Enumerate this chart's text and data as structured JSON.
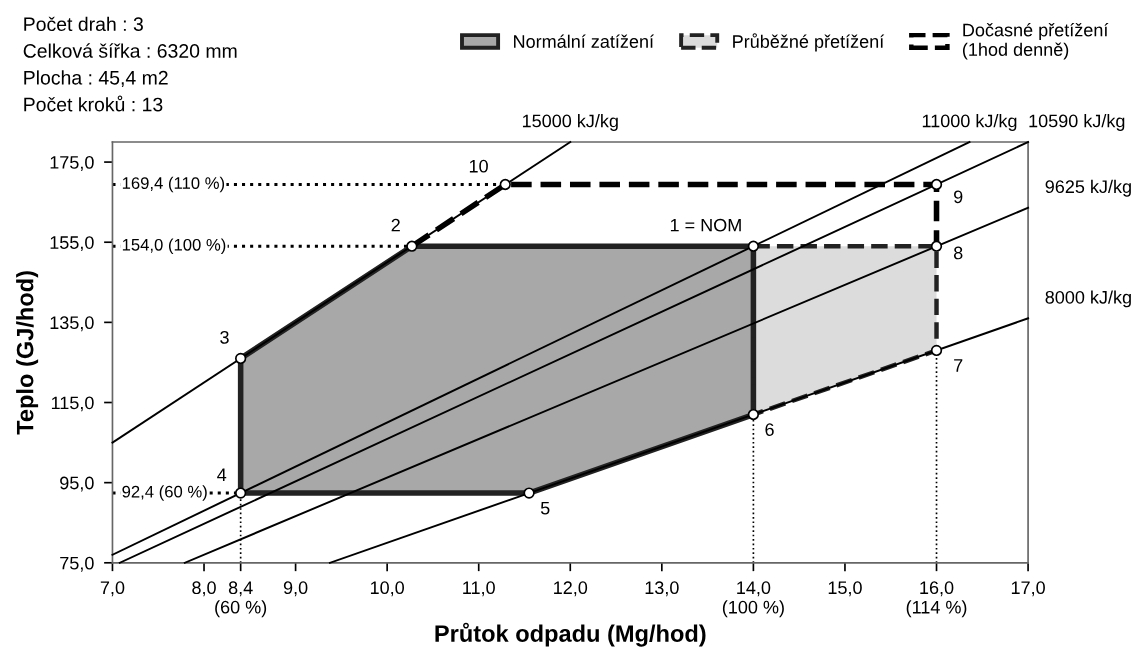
{
  "chart_data": {
    "type": "line",
    "xlabel": "Průtok odpadu (Mg/hod)",
    "ylabel": "Teplo (GJ/hod)",
    "xlim": [
      7,
      17
    ],
    "ylim": [
      75,
      180
    ],
    "xticks": [
      {
        "value": 7,
        "label": "7,0"
      },
      {
        "value": 8,
        "label": "8,0"
      },
      {
        "value": 8.4,
        "label": "8,4\n(60 %)"
      },
      {
        "value": 9,
        "label": "9,0"
      },
      {
        "value": 10,
        "label": "10,0"
      },
      {
        "value": 11,
        "label": "11,0"
      },
      {
        "value": 12,
        "label": "12,0"
      },
      {
        "value": 13,
        "label": "13,0"
      },
      {
        "value": 14,
        "label": "14,0\n(100 %)"
      },
      {
        "value": 15,
        "label": "15,0"
      },
      {
        "value": 16,
        "label": "16,0\n(114 %)"
      },
      {
        "value": 17,
        "label": "17,0"
      }
    ],
    "yticks": [
      {
        "value": 75,
        "label": "75,0"
      },
      {
        "value": 95,
        "label": "95,0"
      },
      {
        "value": 115,
        "label": "115,0"
      },
      {
        "value": 135,
        "label": "135,0"
      },
      {
        "value": 155,
        "label": "155,0"
      },
      {
        "value": 175,
        "label": "175,0"
      }
    ],
    "grid": false,
    "legend": "top right",
    "series": [
      {
        "type": "area",
        "name": "Normální zatížení",
        "color": "#a8a8a8",
        "line_style": "solid",
        "x": [
          8.4,
          10.27,
          14,
          14,
          11.55,
          8.4
        ],
        "values": [
          126,
          154,
          154,
          112,
          92.4,
          92.4
        ]
      },
      {
        "type": "area",
        "name": "Průběžné přetížení",
        "color": "#dcdcdc",
        "line_style": "dashed",
        "x": [
          14,
          16,
          16,
          14
        ],
        "values": [
          154,
          154,
          128,
          112
        ]
      },
      {
        "name": "Dočasné přetížení\n(1hod denně)",
        "color": "#000000",
        "line_style": "dashed",
        "x": [
          10.27,
          11.29,
          16,
          16
        ],
        "values": [
          154,
          169.4,
          169.4,
          154
        ]
      },
      {
        "name": "15000 kJ/kg",
        "color": "#000000",
        "line_style": "solid",
        "x": [
          7,
          12
        ],
        "values": [
          105,
          180
        ]
      },
      {
        "name": "11000 kJ/kg",
        "color": "#000000",
        "line_style": "solid",
        "x": [
          7,
          16.36
        ],
        "values": [
          77,
          180
        ]
      },
      {
        "name": "10590 kJ/kg",
        "color": "#000000",
        "line_style": "solid",
        "x": [
          7.08,
          17
        ],
        "values": [
          75,
          180
        ]
      },
      {
        "name": "9625 kJ/kg",
        "color": "#000000",
        "line_style": "solid",
        "x": [
          7.79,
          17
        ],
        "values": [
          75,
          163.6
        ]
      },
      {
        "name": "8000 kJ/kg",
        "color": "#000000",
        "line_style": "solid",
        "x": [
          9.375,
          17
        ],
        "values": [
          75,
          136
        ]
      },
      {
        "type": "scatter",
        "color": "#000000",
        "marker": "circle",
        "x": [
          14,
          10.27,
          8.4,
          8.4,
          11.55,
          14,
          16,
          16,
          16,
          11.29
        ],
        "values": [
          154,
          154,
          126,
          92.4,
          92.4,
          112,
          128,
          154,
          169.4,
          169.4
        ]
      }
    ],
    "ref_lines": [
      {
        "axis": "y",
        "value": 169.4,
        "label": "169,4 (110 %)",
        "line_style": "dotted"
      },
      {
        "axis": "y",
        "value": 154,
        "label": "154,0 (100 %)",
        "line_style": "dotted"
      },
      {
        "axis": "y",
        "value": 92.4,
        "label": "92,4 (60 %)",
        "line_style": "dotted"
      },
      {
        "axis": "x",
        "value": 8.4,
        "line_style": "dotted"
      },
      {
        "axis": "x",
        "value": 14,
        "line_style": "dotted"
      },
      {
        "axis": "x",
        "value": 16,
        "line_style": "dotted"
      }
    ],
    "annotations": [
      {
        "text": "1 = NOM",
        "x": 14,
        "y": 154
      },
      {
        "text": "2",
        "x": 10.27,
        "y": 154
      },
      {
        "text": "3",
        "x": 8.4,
        "y": 126
      },
      {
        "text": "4",
        "x": 8.4,
        "y": 92.4
      },
      {
        "text": "5",
        "x": 11.55,
        "y": 92.4
      },
      {
        "text": "6",
        "x": 14,
        "y": 112
      },
      {
        "text": "7",
        "x": 16,
        "y": 128
      },
      {
        "text": "8",
        "x": 16,
        "y": 154
      },
      {
        "text": "9",
        "x": 16,
        "y": 169.4
      },
      {
        "text": "10",
        "x": 11.29,
        "y": 169.4
      },
      "Počet drah : 3",
      "Celková šířka : 6320 mm",
      "Plocha : 45,4 m2",
      "Počet kroků : 13"
    ]
  }
}
